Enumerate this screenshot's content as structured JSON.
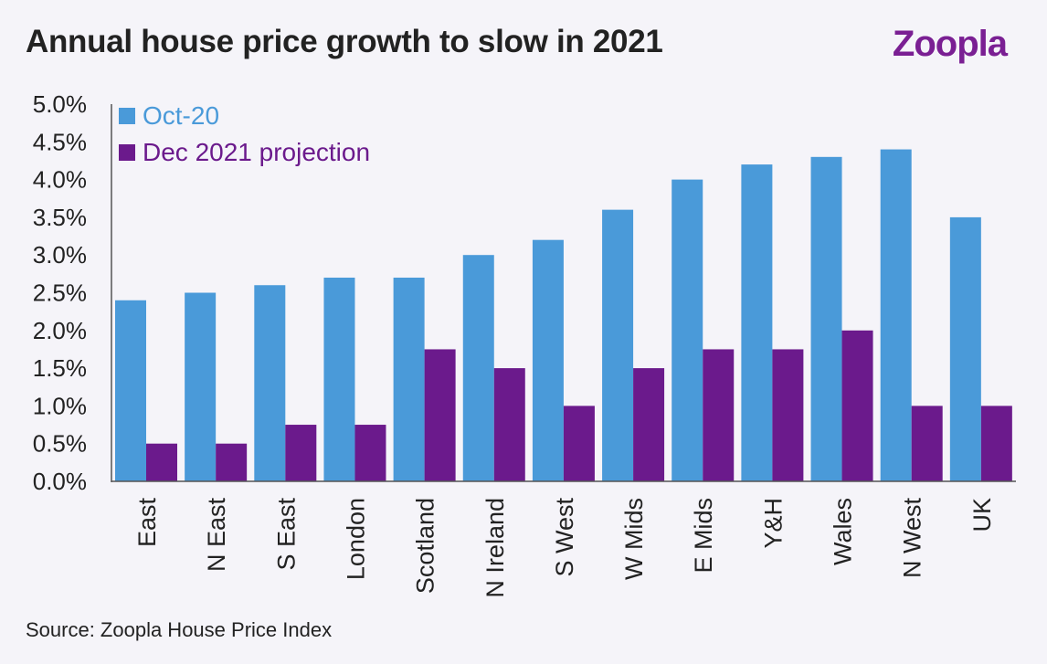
{
  "header": {
    "title": "Annual house price growth to slow in 2021",
    "logo_text": "Zoopla"
  },
  "footer": {
    "source": "Source: Zoopla House Price Index"
  },
  "colors": {
    "series_oct20": "#4a9ad9",
    "series_dec21": "#6b1a8c",
    "background": "#f5f4f9",
    "logo": "#7a1f93"
  },
  "chart_data": {
    "type": "bar",
    "title": "Annual house price growth to slow in 2021",
    "xlabel": "",
    "ylabel": "",
    "ylim": [
      0,
      5
    ],
    "yticks": [
      "0.0%",
      "0.5%",
      "1.0%",
      "1.5%",
      "2.0%",
      "2.5%",
      "3.0%",
      "3.5%",
      "4.0%",
      "4.5%",
      "5.0%"
    ],
    "grid": false,
    "legend_position": "top-left",
    "categories": [
      "East",
      "N East",
      "S East",
      "London",
      "Scotland",
      "N Ireland",
      "S West",
      "W Mids",
      "E Mids",
      "Y&H",
      "Wales",
      "N West",
      "UK"
    ],
    "series": [
      {
        "name": "Oct-20",
        "values": [
          2.4,
          2.5,
          2.6,
          2.7,
          2.7,
          3.0,
          3.2,
          3.6,
          4.0,
          4.2,
          4.3,
          4.4,
          3.5
        ]
      },
      {
        "name": "Dec 2021 projection",
        "values": [
          0.5,
          0.5,
          0.75,
          0.75,
          1.75,
          1.5,
          1.0,
          1.5,
          1.75,
          1.75,
          2.0,
          1.0,
          1.0
        ]
      }
    ]
  }
}
